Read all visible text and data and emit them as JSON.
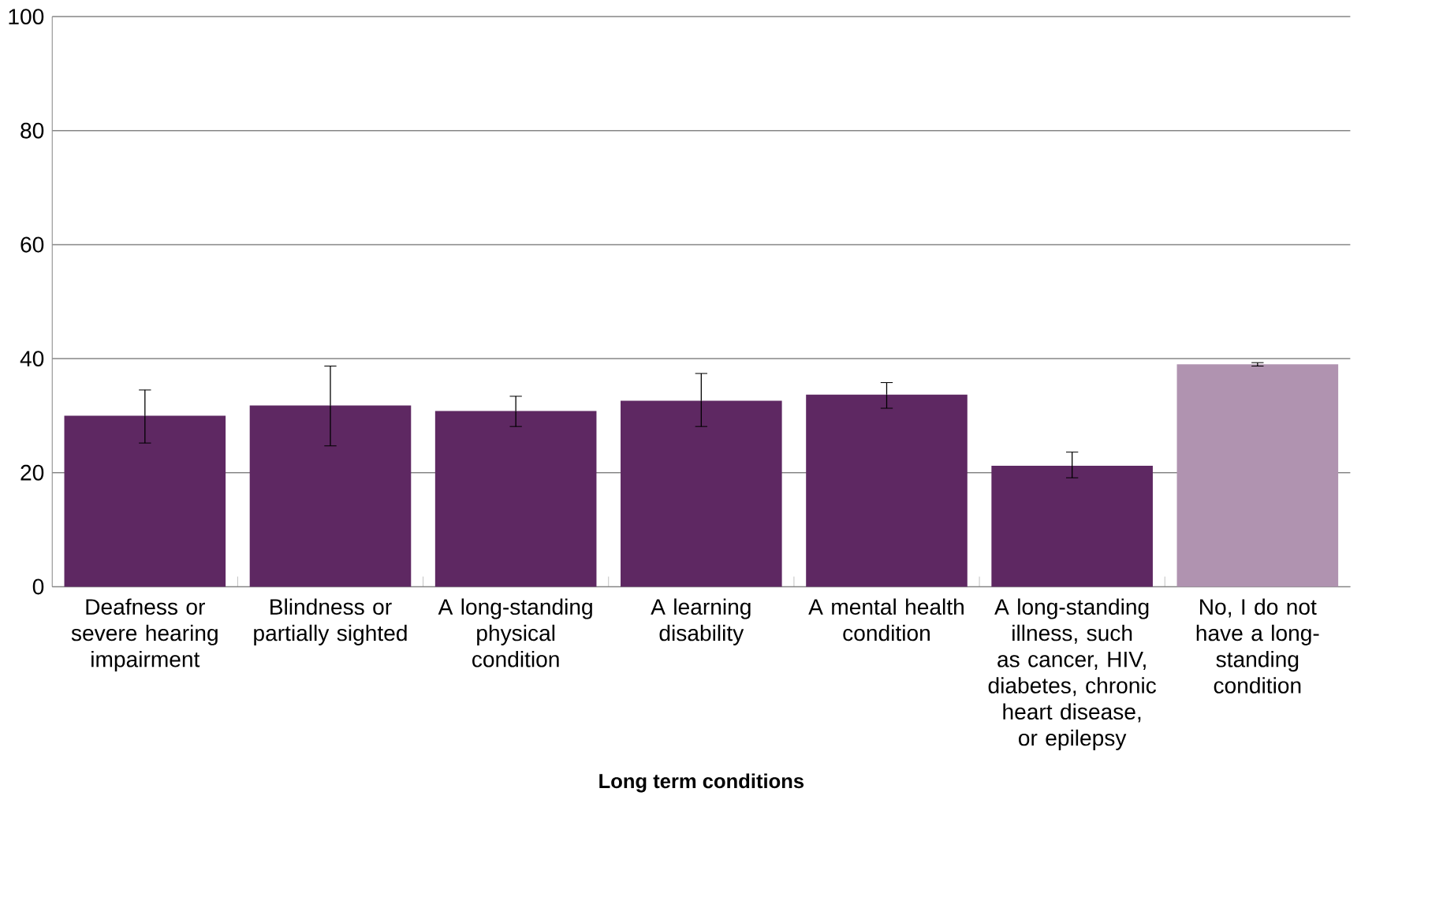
{
  "chart_data": {
    "type": "bar",
    "xlabel": "Long term conditions",
    "categories": [
      "Deafness or severe hearing impairment",
      "Blindness or partially sighted",
      "A long-standing physical condition",
      "A learning disability",
      "A mental health condition",
      "A long-standing illness, such as cancer, HIV, diabetes, chronic heart disease, or epilepsy",
      "No, I do not have a long-standing condition"
    ],
    "values": [
      30.0,
      31.8,
      30.8,
      32.6,
      33.7,
      21.2,
      39.0
    ],
    "errors": [
      [
        25.2,
        34.5
      ],
      [
        24.7,
        38.7
      ],
      [
        28.1,
        33.4
      ],
      [
        28.1,
        37.4
      ],
      [
        31.3,
        35.8
      ],
      [
        19.1,
        23.6
      ],
      [
        38.7,
        39.3
      ]
    ],
    "colors": [
      "#5e2862",
      "#5e2862",
      "#5e2862",
      "#5e2862",
      "#5e2862",
      "#5e2862",
      "#b093b0"
    ],
    "ylim": [
      0,
      100
    ],
    "yticks": [
      0,
      20,
      40,
      60,
      80,
      100
    ],
    "grid": "y"
  }
}
